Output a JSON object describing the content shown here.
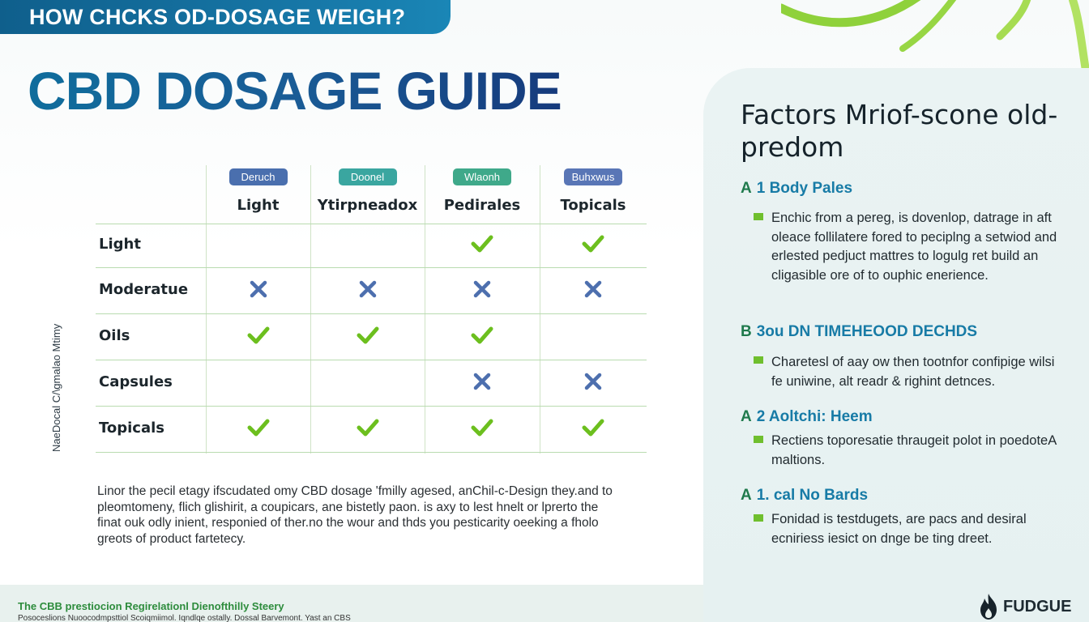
{
  "banner": {
    "text": "HOW CHCKS OD-DOSAGE WEIGH?"
  },
  "title": "CBD DOSAGE GUIDE",
  "side_label": "NaeDocal C/\\gmalao Mtimy",
  "table": {
    "columns": [
      {
        "pill": "Deruch",
        "pill_color": "#4a6fae",
        "title": "Light"
      },
      {
        "pill": "Doonel",
        "pill_color": "#3aa6a0",
        "title": "Ytirpneadox"
      },
      {
        "pill": "Wlaonh",
        "pill_color": "#3fa98a",
        "title": "Pedirales"
      },
      {
        "pill": "Buhxwus",
        "pill_color": "#5976b6",
        "title": "Topicals"
      }
    ],
    "rows": [
      {
        "label": "Light",
        "marks": [
          "",
          "",
          "check",
          "check"
        ]
      },
      {
        "label": "Moderatue",
        "marks": [
          "cross",
          "cross",
          "cross",
          "cross"
        ]
      },
      {
        "label": "Oils",
        "marks": [
          "check",
          "check",
          "check",
          ""
        ]
      },
      {
        "label": "Capsules",
        "marks": [
          "",
          "",
          "cross",
          "cross"
        ]
      },
      {
        "label": "Topicals",
        "marks": [
          "check",
          "check",
          "check",
          "check"
        ]
      }
    ]
  },
  "description": [
    "Linor the pecil etagy ifscudated omy CBD dosage 'fmilly agesed, anChil-c-Design they.and to",
    "pleomtomeny, flich glishirit, a coupicars, ane bistetly paon. is axy to lest hnelt or lprerto the",
    "finat ouk odly inient, responied of ther.no the wour and thds you pesticarity oeeking a fholo",
    "greots of product fartetecy."
  ],
  "panel": {
    "title": "Factors Mriof-scone old-predom",
    "sections": [
      {
        "letter": "A",
        "heading": "1 Body Pales",
        "text": "Enchic from a pereg, is dovenlop, datrage in aft oleace follilatere fored to peciplng a setwiod and erlested pedjuct mattres to logulg ret build an cligasible ore of to ouphic enerience."
      },
      {
        "letter": "B",
        "heading": "3ou DN TIMEHEOOD DECHDS",
        "text": "Charetesl of aay ow then tootnfor confipige wilsi fe uniwine, alt readr & righint detnces."
      },
      {
        "letter": "A",
        "heading": "2 Aoltchi: Heem",
        "text": "Rectiens toporesatie thraugeit polot in poedoteA maltions."
      },
      {
        "letter": "A",
        "heading": "1. cal No Bards",
        "text": "Fonidad is testdugets, are pacs and desiral ecniriess iesict on dnge be ting dreet."
      }
    ]
  },
  "footer": {
    "title": "The CBB prestiocion Regirelationl Dienofthilly Steery",
    "subtitle": "Posoceslions Nuoocodmpsttiol Scoiqmiimol. Iqndlqe ostally. Dossal Barvemont. Yast an CBS"
  },
  "brand": {
    "name": "FUDGUE"
  },
  "colors": {
    "check": "#6cbf1e",
    "cross": "#4d6fae",
    "accent": "#177ba6"
  }
}
